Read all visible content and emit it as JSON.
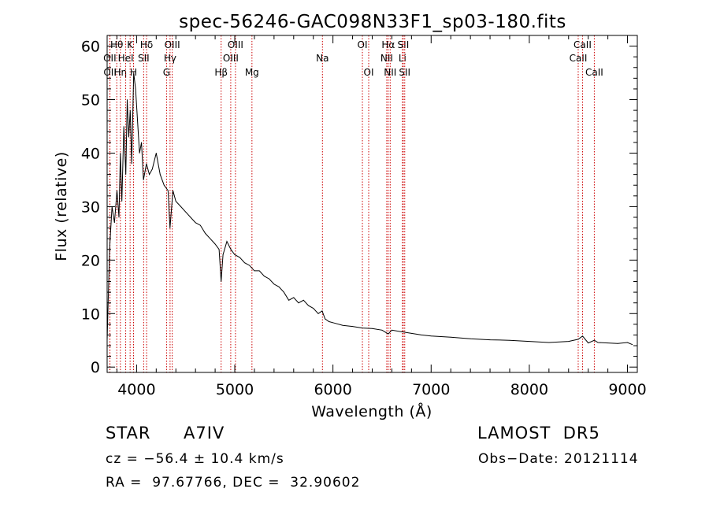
{
  "chart_data": {
    "type": "line",
    "title": "spec-56246-GAC098N33F1_sp03-180.fits",
    "xlabel": "Wavelength (Å)",
    "ylabel": "Flux (relative)",
    "xlim": [
      3700,
      9100
    ],
    "ylim": [
      -1,
      62
    ],
    "xticks": [
      4000,
      5000,
      6000,
      7000,
      8000,
      9000
    ],
    "yticks": [
      0,
      10,
      20,
      30,
      40,
      50,
      60
    ],
    "grid": false,
    "line_color": "#000000",
    "marker_color": "#cc0000",
    "series": [
      {
        "x": [
          3700,
          3725,
          3750,
          3775,
          3800,
          3820,
          3835,
          3850,
          3870,
          3890,
          3905,
          3920,
          3935,
          3950,
          3970,
          3990,
          4010,
          4030,
          4050,
          4070,
          4100,
          4130,
          4160,
          4200,
          4240,
          4280,
          4320,
          4340,
          4370,
          4400,
          4450,
          4500,
          4550,
          4600,
          4650,
          4700,
          4750,
          4800,
          4840,
          4861,
          4880,
          4920,
          4960,
          5000,
          5050,
          5100,
          5150,
          5200,
          5250,
          5300,
          5350,
          5400,
          5450,
          5500,
          5550,
          5600,
          5650,
          5700,
          5750,
          5800,
          5850,
          5890,
          5920,
          5960,
          6000,
          6100,
          6200,
          6300,
          6400,
          6500,
          6563,
          6600,
          6700,
          6800,
          6900,
          7000,
          7200,
          7400,
          7600,
          7800,
          8000,
          8200,
          8400,
          8498,
          8542,
          8600,
          8662,
          8700,
          8800,
          8900,
          9000,
          9050
        ],
        "y": [
          5,
          22,
          30,
          27,
          33,
          28,
          40,
          31,
          45,
          36,
          50,
          43,
          48,
          38,
          55,
          52,
          46,
          40,
          42,
          35,
          38,
          36,
          37,
          40,
          36,
          34,
          33,
          26,
          33,
          31,
          30,
          29,
          28,
          27,
          26.5,
          25,
          24,
          23,
          22,
          16,
          21,
          23.5,
          22,
          21,
          20.5,
          19.5,
          19,
          18,
          18,
          17,
          16.5,
          15.5,
          15,
          14,
          12.5,
          13,
          12,
          12.5,
          11.5,
          11,
          10,
          10.5,
          9,
          8.5,
          8.3,
          7.8,
          7.6,
          7.3,
          7.2,
          6.9,
          6.2,
          6.9,
          6.6,
          6.3,
          6,
          5.8,
          5.6,
          5.3,
          5.1,
          5,
          4.8,
          4.6,
          4.8,
          5.2,
          5.8,
          4.5,
          5.0,
          4.6,
          4.5,
          4.4,
          4.6,
          4.2
        ]
      }
    ],
    "lines": [
      {
        "name": "Hθ",
        "x": 3798,
        "row": 1
      },
      {
        "name": "OII",
        "x": 3727,
        "row": 2
      },
      {
        "name": "OII",
        "x": 3729,
        "row": 3
      },
      {
        "name": "Hη",
        "x": 3835,
        "row": 3
      },
      {
        "name": "HeI",
        "x": 3889,
        "row": 2
      },
      {
        "name": "K",
        "x": 3934,
        "row": 1
      },
      {
        "name": "H",
        "x": 3969,
        "row": 3
      },
      {
        "name": "SII",
        "x": 4072,
        "row": 2
      },
      {
        "name": "Hδ",
        "x": 4102,
        "row": 1
      },
      {
        "name": "G",
        "x": 4305,
        "row": 3
      },
      {
        "name": "Hγ",
        "x": 4341,
        "row": 2
      },
      {
        "name": "OIII",
        "x": 4363,
        "row": 1
      },
      {
        "name": "Hβ",
        "x": 4861,
        "row": 3
      },
      {
        "name": "OIII",
        "x": 4959,
        "row": 2
      },
      {
        "name": "OIII",
        "x": 5007,
        "row": 1
      },
      {
        "name": "Mg",
        "x": 5175,
        "row": 3
      },
      {
        "name": "Na",
        "x": 5893,
        "row": 2
      },
      {
        "name": "OI",
        "x": 6300,
        "row": 1
      },
      {
        "name": "OI",
        "x": 6364,
        "row": 3
      },
      {
        "name": "NII",
        "x": 6548,
        "row": 2
      },
      {
        "name": "Hα",
        "x": 6563,
        "row": 1
      },
      {
        "name": "NII",
        "x": 6583,
        "row": 3
      },
      {
        "name": "Li",
        "x": 6708,
        "row": 2
      },
      {
        "name": "SII",
        "x": 6716,
        "row": 1
      },
      {
        "name": "SII",
        "x": 6731,
        "row": 3
      },
      {
        "name": "CaII",
        "x": 8498,
        "row": 2
      },
      {
        "name": "CaII",
        "x": 8542,
        "row": 1
      },
      {
        "name": "CaII",
        "x": 8662,
        "row": 3
      }
    ]
  },
  "footer": {
    "object_class": "STAR",
    "subclass": "A7IV",
    "survey": "LAMOST  DR5",
    "cz": "cz = −56.4 ± 10.4 km/s",
    "obs_date": "Obs−Date: 20121114",
    "radec": "RA =  97.67766, DEC =  32.90602"
  }
}
